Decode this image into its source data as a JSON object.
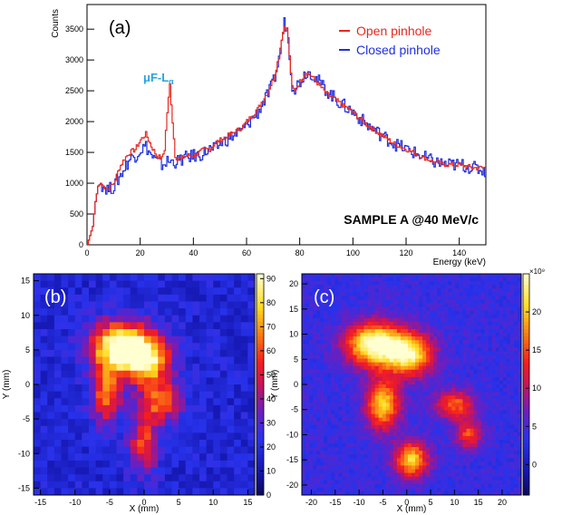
{
  "chart_data": [
    {
      "panel": "(a)",
      "type": "line",
      "xlabel": "Energy (keV)",
      "ylabel": "Counts",
      "xlim": [
        0,
        150
      ],
      "ylim": [
        0,
        3900
      ],
      "x_ticks": [
        0,
        20,
        40,
        60,
        80,
        100,
        120,
        140
      ],
      "y_ticks": [
        0,
        500,
        1000,
        1500,
        2000,
        2500,
        3000,
        3500
      ],
      "legend_position": "top-right",
      "annotation": {
        "text": "μF-L",
        "subscript": "α",
        "color": "#29a3e0"
      },
      "label": "SAMPLE A @40 MeV/c",
      "series": [
        {
          "name": "Open pinhole",
          "color": "#e8281e",
          "x": [
            0,
            2,
            3,
            4,
            5,
            6,
            8,
            10,
            12,
            14,
            16,
            18,
            20,
            22,
            24,
            26,
            28,
            29,
            30,
            31,
            32,
            33,
            34,
            36,
            38,
            40,
            42,
            44,
            46,
            48,
            50,
            52,
            54,
            56,
            58,
            60,
            62,
            64,
            66,
            68,
            70,
            72,
            73,
            74,
            75,
            76,
            77,
            78,
            80,
            82,
            84,
            86,
            88,
            90,
            95,
            100,
            105,
            110,
            115,
            120,
            125,
            130,
            135,
            140,
            145,
            150
          ],
          "y": [
            0,
            300,
            700,
            950,
            1000,
            950,
            900,
            1000,
            1250,
            1400,
            1500,
            1550,
            1700,
            1800,
            1600,
            1450,
            1400,
            1550,
            2150,
            2600,
            2000,
            1450,
            1380,
            1420,
            1450,
            1450,
            1500,
            1550,
            1550,
            1650,
            1700,
            1750,
            1800,
            1850,
            1900,
            2000,
            2100,
            2200,
            2350,
            2500,
            2700,
            3050,
            3350,
            3550,
            3500,
            3050,
            2550,
            2500,
            2650,
            2800,
            2750,
            2650,
            2550,
            2450,
            2300,
            2150,
            1950,
            1800,
            1650,
            1550,
            1450,
            1350,
            1300,
            1300,
            1250,
            1250
          ]
        },
        {
          "name": "Closed pinhole",
          "color": "#1f2fe0",
          "x": [
            0,
            2,
            3,
            4,
            5,
            6,
            8,
            10,
            12,
            14,
            16,
            18,
            20,
            22,
            24,
            26,
            28,
            30,
            32,
            34,
            36,
            38,
            40,
            42,
            44,
            46,
            48,
            50,
            52,
            54,
            56,
            58,
            60,
            62,
            64,
            66,
            68,
            70,
            72,
            73,
            74,
            75,
            76,
            77,
            78,
            80,
            82,
            84,
            86,
            88,
            90,
            95,
            100,
            105,
            110,
            115,
            120,
            125,
            130,
            135,
            140,
            145,
            150
          ],
          "y": [
            0,
            300,
            700,
            950,
            1000,
            950,
            900,
            950,
            1100,
            1250,
            1400,
            1450,
            1550,
            1600,
            1450,
            1350,
            1300,
            1350,
            1350,
            1350,
            1400,
            1420,
            1450,
            1450,
            1500,
            1550,
            1550,
            1650,
            1700,
            1750,
            1800,
            1850,
            1950,
            2050,
            2150,
            2300,
            2450,
            2650,
            3000,
            3300,
            3600,
            3550,
            3100,
            2600,
            2550,
            2650,
            2800,
            2800,
            2700,
            2600,
            2500,
            2300,
            2150,
            1950,
            1800,
            1650,
            1550,
            1450,
            1350,
            1300,
            1300,
            1250,
            1200
          ]
        }
      ]
    },
    {
      "panel": "(b)",
      "type": "heatmap",
      "xlabel": "X (mm)",
      "ylabel": "Y (mm)",
      "xlim": [
        -16,
        16
      ],
      "ylim": [
        -16,
        16
      ],
      "x_ticks": [
        -15,
        -10,
        -5,
        0,
        5,
        10,
        15
      ],
      "y_ticks": [
        -15,
        -10,
        -5,
        0,
        5,
        10,
        15
      ],
      "zlim": [
        0,
        92
      ],
      "colorbar_ticks": [
        0,
        10,
        20,
        30,
        40,
        50,
        60,
        70,
        80,
        90
      ],
      "colormap": "ROOT rainbow (blue–red–yellow–white)",
      "grid": "32 x 32 bins of 1 mm",
      "hotspots": [
        {
          "x": -3.5,
          "y": 5.5,
          "sx": 3.0,
          "sy": 2.5,
          "amp": 80
        },
        {
          "x": 0.5,
          "y": 3.5,
          "sx": 2.5,
          "sy": 2.5,
          "amp": 60
        },
        {
          "x": -5.5,
          "y": -1.5,
          "sx": 1.5,
          "sy": 3.0,
          "amp": 45
        },
        {
          "x": 2.5,
          "y": -2.5,
          "sx": 2.0,
          "sy": 2.0,
          "amp": 45
        },
        {
          "x": 0.0,
          "y": -8.5,
          "sx": 1.5,
          "sy": 3.0,
          "amp": 40
        }
      ],
      "background": 18
    },
    {
      "panel": "(c)",
      "type": "heatmap",
      "xlabel": "X (mm)",
      "ylabel": "Y (mm)",
      "xlim": [
        -22,
        24
      ],
      "ylim": [
        -22,
        22
      ],
      "x_ticks": [
        -20,
        -15,
        -10,
        -5,
        0,
        5,
        10,
        15,
        20
      ],
      "y_ticks": [
        -20,
        -15,
        -10,
        -5,
        0,
        5,
        10,
        15,
        20
      ],
      "zlim": [
        -4,
        25
      ],
      "colorbar_ticks": [
        0,
        5,
        10,
        15,
        20
      ],
      "colorbar_exponent": "×10⁹",
      "colormap": "ROOT rainbow (blue–red–yellow–white)",
      "smoothed": true,
      "hotspots": [
        {
          "x": -7.0,
          "y": 8.0,
          "sx": 4.0,
          "sy": 3.0,
          "amp": 22
        },
        {
          "x": 0.5,
          "y": 6.0,
          "sx": 3.5,
          "sy": 3.0,
          "amp": 19
        },
        {
          "x": -5.0,
          "y": -4.0,
          "sx": 2.5,
          "sy": 3.5,
          "amp": 17
        },
        {
          "x": 1.0,
          "y": -15.0,
          "sx": 2.5,
          "sy": 2.5,
          "amp": 17
        },
        {
          "x": 10.0,
          "y": -4.0,
          "sx": 3.0,
          "sy": 2.0,
          "amp": 12
        },
        {
          "x": 13.0,
          "y": -10.0,
          "sx": 2.0,
          "sy": 2.0,
          "amp": 11
        }
      ],
      "background": 4
    }
  ],
  "panel_labels": {
    "a": "(a)",
    "b": "(b)",
    "c": "(c)"
  }
}
